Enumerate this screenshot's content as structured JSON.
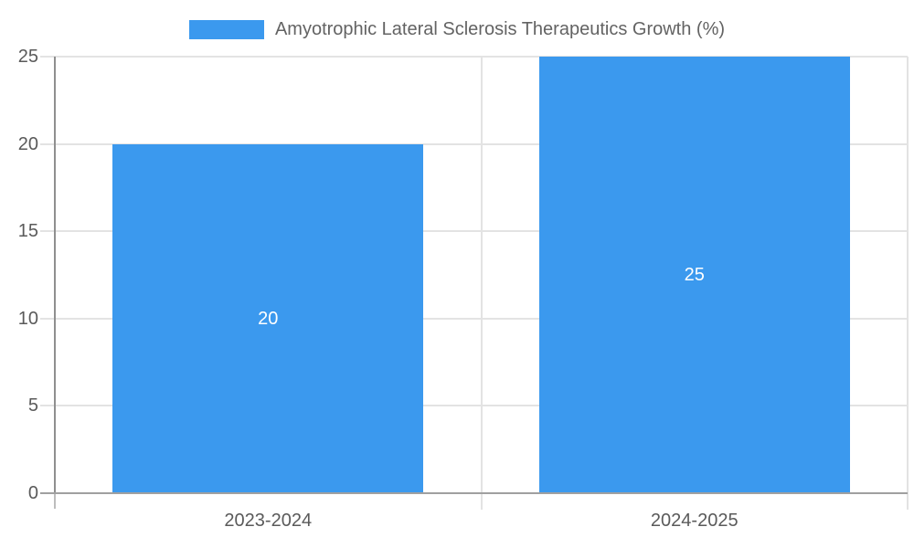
{
  "legend": {
    "label": "Amyotrophic Lateral Sclerosis Therapeutics Growth (%)"
  },
  "chart_data": {
    "type": "bar",
    "title": "Amyotrophic Lateral Sclerosis Therapeutics Growth (%)",
    "categories": [
      "2023-2024",
      "2024-2025"
    ],
    "series": [
      {
        "name": "Amyotrophic Lateral Sclerosis Therapeutics Growth (%)",
        "values": [
          20,
          25
        ]
      }
    ],
    "values": [
      20,
      25
    ],
    "data_labels": [
      "20",
      "25"
    ],
    "ylim": [
      0,
      25
    ],
    "yticks": [
      0,
      5,
      10,
      15,
      20,
      25
    ],
    "ytick_labels": [
      "0",
      "5",
      "10",
      "15",
      "20",
      "25"
    ],
    "xlabel": "",
    "ylabel": "",
    "grid": true,
    "legend_position": "top"
  },
  "colors": {
    "bar": "#3b99ee",
    "grid": "#e3e3e3",
    "axis": "#8f8f8f",
    "axis_below": "#bdbdbd",
    "baseline": "#a0a0a0",
    "tick_label": "#5a5a5a",
    "x_label": "#5a5a5a",
    "legend_text": "#636363",
    "data_label": "#ffffff",
    "background": "#ffffff"
  }
}
